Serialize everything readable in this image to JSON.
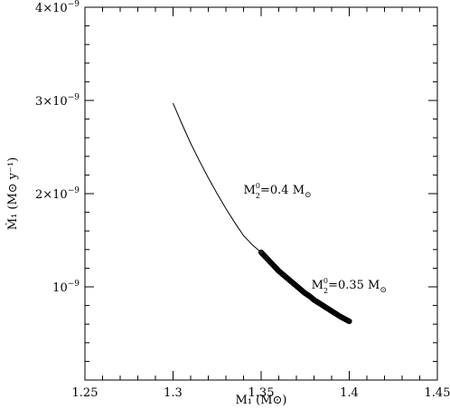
{
  "chart_data": {
    "type": "line",
    "title": "",
    "xlabel": "M₁ (M⊙)",
    "ylabel": "Ṁ₁ (M⊙ y⁻¹)",
    "xlim": [
      1.25,
      1.45
    ],
    "ylim": [
      0,
      4e-09
    ],
    "x_ticks": [
      {
        "value": 1.25,
        "label": "1.25"
      },
      {
        "value": 1.3,
        "label": "1.3"
      },
      {
        "value": 1.35,
        "label": "1.35"
      },
      {
        "value": 1.4,
        "label": "1.4"
      },
      {
        "value": 1.45,
        "label": "1.45"
      }
    ],
    "y_ticks": [
      {
        "value": 1e-09,
        "mantissa": "",
        "exponent": "−9"
      },
      {
        "value": 2e-09,
        "mantissa": "2",
        "exponent": "−9"
      },
      {
        "value": 3e-09,
        "mantissa": "3",
        "exponent": "−9"
      },
      {
        "value": 4e-09,
        "mantissa": "4",
        "exponent": "−9"
      }
    ],
    "series": [
      {
        "style": "line",
        "x": [
          1.3,
          1.305,
          1.31,
          1.315,
          1.32,
          1.325,
          1.33,
          1.335,
          1.34,
          1.345,
          1.35
        ],
        "y": [
          2.97e-09,
          2.75e-09,
          2.54e-09,
          2.35e-09,
          2.17e-09,
          2e-09,
          1.84e-09,
          1.69e-09,
          1.55e-09,
          1.45e-09,
          1.37e-09
        ]
      },
      {
        "style": "markers",
        "x": [
          1.35,
          1.3525,
          1.355,
          1.3575,
          1.36,
          1.3625,
          1.365,
          1.3675,
          1.37,
          1.3725,
          1.375,
          1.3775,
          1.38,
          1.3825,
          1.385,
          1.3875,
          1.39,
          1.3925,
          1.395,
          1.3975,
          1.4
        ],
        "y": [
          1.37e-09,
          1.32e-09,
          1.27e-09,
          1.22e-09,
          1.17e-09,
          1.13e-09,
          1.09e-09,
          1.05e-09,
          1.01e-09,
          9.7e-10,
          9.3e-10,
          9e-10,
          8.6e-10,
          8.3e-10,
          8e-10,
          7.7e-10,
          7.4e-10,
          7.1e-10,
          6.8e-10,
          6.55e-10,
          6.3e-10
        ]
      }
    ],
    "annotations": [
      {
        "main": "M",
        "sub": "2",
        "sup": "0",
        "text": "=0.4  M",
        "sun": "⊙",
        "x": 1.34,
        "y": 2e-09
      },
      {
        "main": "M",
        "sub": "2",
        "sup": "0",
        "text": "=0.35  M",
        "sun": "⊙",
        "x": 1.3785,
        "y": 9.8e-10
      }
    ],
    "grid": false,
    "legend": "none"
  }
}
